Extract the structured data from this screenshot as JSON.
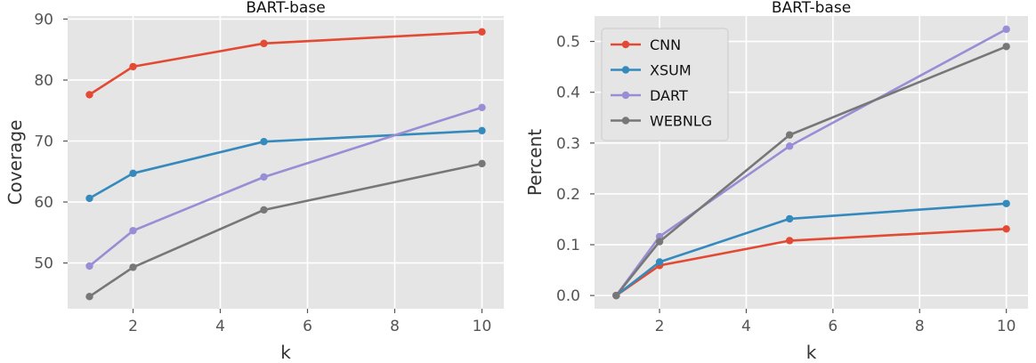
{
  "chart_data": [
    {
      "type": "line",
      "title": "BART-base",
      "xlabel": "k",
      "ylabel": "Coverage",
      "x": [
        1,
        2,
        5,
        10
      ],
      "xlim": [
        0.5,
        10.5
      ],
      "ylim": [
        42.5,
        90.5
      ],
      "xticks": [
        2,
        4,
        6,
        8,
        10
      ],
      "yticks": [
        50,
        60,
        70,
        80,
        90
      ],
      "grid": true,
      "legend": null,
      "series": [
        {
          "name": "CNN",
          "color": "#e24a33",
          "values": [
            77.6,
            82.2,
            86.0,
            87.9
          ]
        },
        {
          "name": "XSUM",
          "color": "#348abd",
          "values": [
            60.6,
            64.7,
            69.9,
            71.7
          ]
        },
        {
          "name": "DART",
          "color": "#988ed5",
          "values": [
            49.5,
            55.3,
            64.1,
            75.5
          ]
        },
        {
          "name": "WEBNLG",
          "color": "#777777",
          "values": [
            44.5,
            49.3,
            58.7,
            66.3
          ]
        }
      ]
    },
    {
      "type": "line",
      "title": "BART-base",
      "xlabel": "k",
      "ylabel": "Percent",
      "x": [
        1,
        2,
        5,
        10
      ],
      "xlim": [
        0.5,
        10.5
      ],
      "ylim": [
        -0.026,
        0.55
      ],
      "xticks": [
        2,
        4,
        6,
        8,
        10
      ],
      "yticks": [
        0.0,
        0.1,
        0.2,
        0.3,
        0.4,
        0.5
      ],
      "ytick_labels": [
        "0.0",
        "0.1",
        "0.2",
        "0.3",
        "0.4",
        "0.5"
      ],
      "grid": true,
      "legend": "top-left",
      "series": [
        {
          "name": "CNN",
          "color": "#e24a33",
          "values": [
            0.0,
            0.059,
            0.108,
            0.131
          ]
        },
        {
          "name": "XSUM",
          "color": "#348abd",
          "values": [
            0.0,
            0.066,
            0.151,
            0.181
          ]
        },
        {
          "name": "DART",
          "color": "#988ed5",
          "values": [
            0.0,
            0.116,
            0.294,
            0.524
          ]
        },
        {
          "name": "WEBNLG",
          "color": "#777777",
          "values": [
            0.0,
            0.106,
            0.316,
            0.49
          ]
        }
      ]
    }
  ],
  "style": {
    "plot_bg": "#e5e5e5",
    "grid_color": "#ffffff"
  }
}
